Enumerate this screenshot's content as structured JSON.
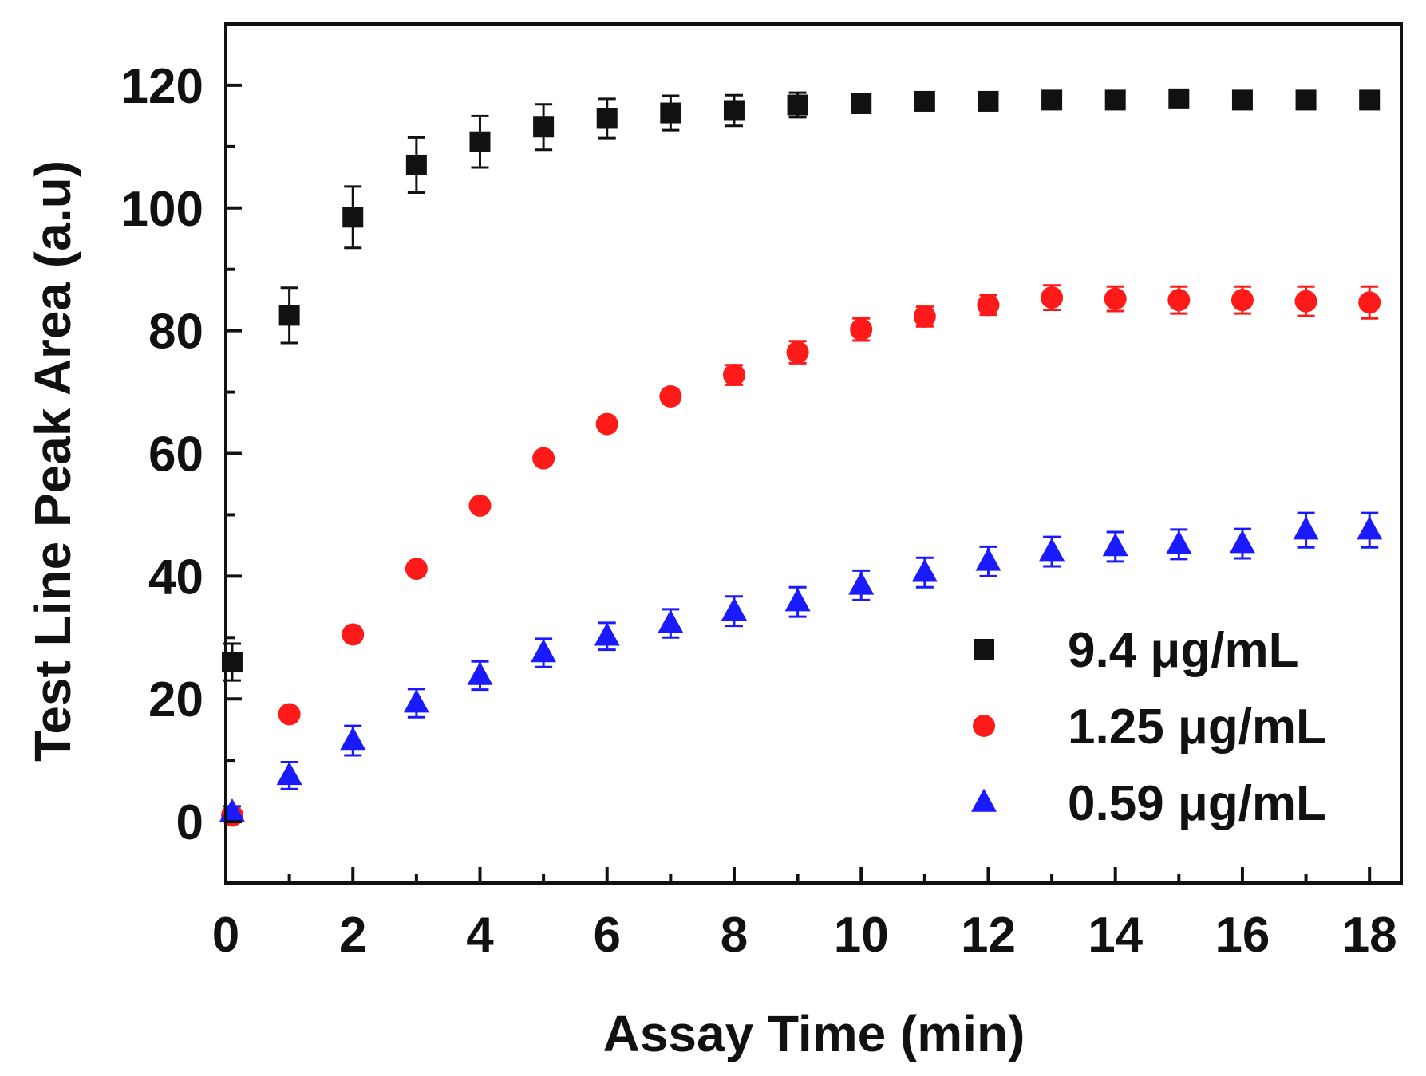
{
  "chart_data": {
    "type": "scatter",
    "title": "",
    "xlabel": "Assay Time (min)",
    "ylabel": "Test Line Peak Area (a.u)",
    "xlim": [
      0,
      18.5
    ],
    "ylim": [
      -10,
      130
    ],
    "x_ticks": [
      0,
      2,
      4,
      6,
      8,
      10,
      12,
      14,
      16,
      18
    ],
    "x_tick_labels": [
      "0",
      "2",
      "4",
      "6",
      "8",
      "10",
      "12",
      "14",
      "16",
      "18"
    ],
    "y_ticks": [
      0,
      20,
      40,
      60,
      80,
      100,
      120
    ],
    "y_tick_labels": [
      "0",
      "20",
      "40",
      "60",
      "80",
      "100",
      "120"
    ],
    "legend_position": "bottom-right",
    "series": [
      {
        "name": "9.4 μg/mL",
        "marker": "square",
        "color": "#111111",
        "x": [
          0.1,
          1,
          2,
          3,
          4,
          5,
          6,
          7,
          8,
          9,
          10,
          11,
          12,
          13,
          14,
          15,
          16,
          17,
          18
        ],
        "y": [
          26,
          82.5,
          98.5,
          107,
          110.8,
          113.2,
          114.6,
          115.5,
          115.9,
          116.8,
          117,
          117.4,
          117.4,
          117.6,
          117.6,
          117.8,
          117.6,
          117.6,
          117.6
        ],
        "err": [
          3,
          4.5,
          5,
          4.5,
          4.2,
          3.7,
          3.2,
          2.8,
          2.5,
          2,
          1.5,
          1,
          1,
          1,
          0.8,
          0.8,
          0.8,
          0.8,
          0.8
        ]
      },
      {
        "name": "1.25 μg/mL",
        "marker": "circle",
        "color": "#ff1a1a",
        "x": [
          0.1,
          1,
          2,
          3,
          4,
          5,
          6,
          7,
          8,
          9,
          10,
          11,
          12,
          13,
          14,
          15,
          16,
          17,
          18
        ],
        "y": [
          1,
          17.5,
          30.5,
          41.2,
          51.5,
          59.2,
          64.8,
          69.3,
          72.8,
          76.5,
          80.2,
          82.3,
          84.2,
          85.4,
          85.2,
          85,
          85,
          84.8,
          84.6
        ],
        "err": [
          0.8,
          0.8,
          0.8,
          0.8,
          0.8,
          1,
          1,
          1.2,
          1.6,
          1.8,
          1.8,
          1.6,
          1.6,
          2,
          2,
          2.2,
          2.2,
          2.4,
          2.6
        ]
      },
      {
        "name": "0.59 μg/mL",
        "marker": "triangle",
        "color": "#1a1aff",
        "x": [
          0.1,
          1,
          2,
          3,
          4,
          5,
          6,
          7,
          8,
          9,
          10,
          11,
          12,
          13,
          14,
          15,
          16,
          17,
          18
        ],
        "y": [
          1.5,
          7.5,
          13.2,
          19.3,
          23.8,
          27.5,
          30.2,
          32.3,
          34.3,
          35.8,
          38.5,
          40.6,
          42.4,
          44,
          44.8,
          45.2,
          45.3,
          47.5,
          47.5
        ],
        "err": [
          1,
          2.2,
          2.4,
          2.3,
          2.3,
          2.3,
          2.2,
          2.3,
          2.4,
          2.4,
          2.4,
          2.4,
          2.4,
          2.4,
          2.4,
          2.4,
          2.4,
          2.8,
          2.8
        ]
      }
    ]
  }
}
